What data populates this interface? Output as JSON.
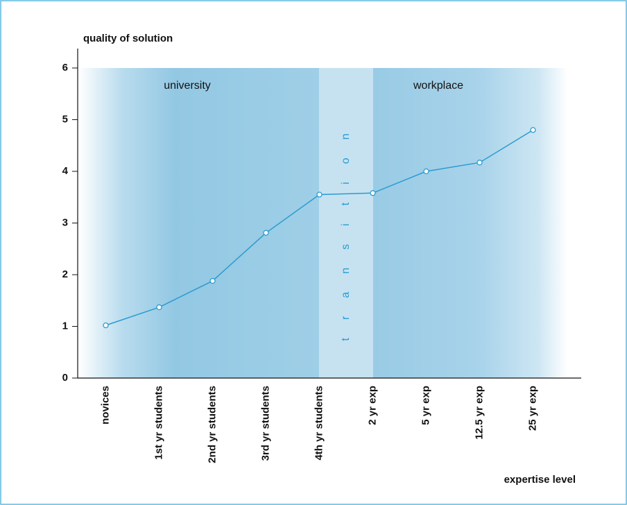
{
  "chart_data": {
    "type": "line",
    "y_label": "quality of solution",
    "x_label": "expertise level",
    "regions": [
      "university",
      "transition",
      "workplace"
    ],
    "categories": [
      "novices",
      "1st yr students",
      "2nd yr students",
      "3rd yr students",
      "4th yr students",
      "2 yr exp",
      "5 yr exp",
      "12.5 yr exp",
      "25 yr exp"
    ],
    "values": [
      1.02,
      1.37,
      1.88,
      2.81,
      3.55,
      3.58,
      4.0,
      4.17,
      4.8
    ],
    "color": "#2a9bd0",
    "ylim": [
      0,
      6
    ],
    "yticks": [
      0,
      1,
      2,
      3,
      4,
      5,
      6
    ]
  }
}
